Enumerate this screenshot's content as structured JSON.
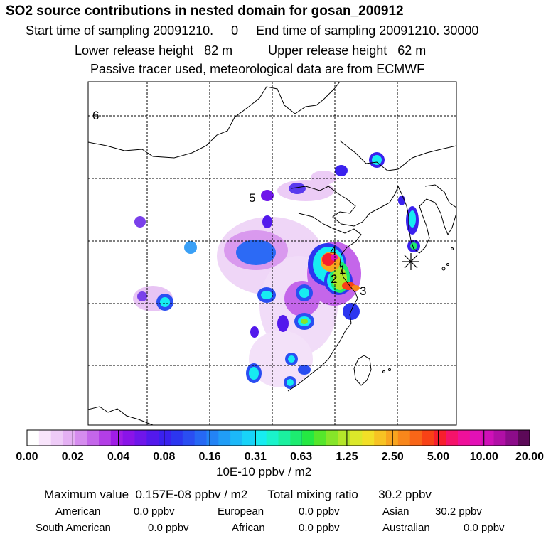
{
  "header": {
    "title": "SO2 source contributions in nested domain for gosan_200912",
    "sampling_line": "Start time of sampling 20091210.     0     End time of sampling 20091210. 30000",
    "height_line": "Lower release height   82 m          Upper release height   62 m",
    "tracer_line": "Passive tracer used, meteorological data are from ECMWF"
  },
  "chart_data": {
    "type": "heatmap",
    "title": "SO2 source contributions in nested domain for gosan_200912",
    "colorbar_ticks": [
      "0.00",
      "0.02",
      "0.04",
      "0.08",
      "0.16",
      "0.31",
      "0.63",
      "1.25",
      "2.50",
      "5.00",
      "10.00",
      "20.00"
    ],
    "colorbar_colors": [
      "#ffffff",
      "#f8e4fb",
      "#eecbf7",
      "#e4b0f3",
      "#d58cee",
      "#c466ea",
      "#b33ee6",
      "#a01de6",
      "#8a14e8",
      "#6f16ea",
      "#5319ec",
      "#3a21ee",
      "#2c36f0",
      "#2a4ef2",
      "#2668f4",
      "#2383f5",
      "#209df6",
      "#1cb8f8",
      "#18d3f8",
      "#17ecf1",
      "#1af3cb",
      "#1bf09f",
      "#1dec70",
      "#25e842",
      "#55e62b",
      "#86e529",
      "#b4e62a",
      "#dbe82a",
      "#f2df27",
      "#f7c323",
      "#f8a51f",
      "#f8871b",
      "#f86618",
      "#f84216",
      "#f71f2d",
      "#f5136a",
      "#ef109a",
      "#e311b6",
      "#cf10b8",
      "#b10fa6",
      "#8c0c8a",
      "#5c0958"
    ],
    "units": "10E-10 ppbv / m2",
    "grid_labels": [
      "6",
      "5",
      "4",
      "1",
      "2",
      "3"
    ],
    "receptor_marker": "asterisk"
  },
  "summary": {
    "max_line": "Maximum value  0.157E-08 ppbv / m2      Total mixing ratio      30.2 ppbv",
    "regions": [
      {
        "label": "American",
        "value": "0.0 ppbv"
      },
      {
        "label": "European",
        "value": "0.0 ppbv"
      },
      {
        "label": "Asian",
        "value": "30.2 ppbv"
      },
      {
        "label": "South American",
        "value": "0.0 ppbv"
      },
      {
        "label": "African",
        "value": "0.0 ppbv"
      },
      {
        "label": "Australian",
        "value": "0.0 ppbv"
      }
    ]
  }
}
